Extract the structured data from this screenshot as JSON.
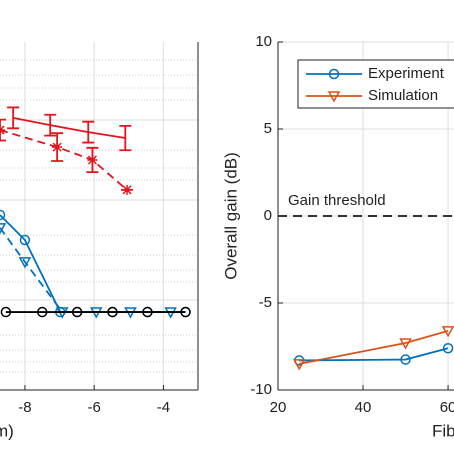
{
  "chart_data": [
    {
      "type": "line",
      "xlabel": "m)",
      "xlim": [
        -8.72,
        -3.0
      ],
      "ylim": [
        0,
        1
      ],
      "xticks": [
        -8,
        -6,
        -4
      ],
      "grid": true,
      "series": [
        {
          "name": "red-solid",
          "color": "#e3141c",
          "dash": false,
          "marker": "none",
          "x": [
            -8.34,
            -7.27,
            -6.17,
            -5.1
          ],
          "values": [
            0.782,
            0.761,
            0.741,
            0.724
          ],
          "errors": [
            0.03,
            0.03,
            0.03,
            0.035
          ]
        },
        {
          "name": "red-dashed",
          "color": "#e3141c",
          "dash": true,
          "marker": "asterisk",
          "x": [
            -8.72,
            -7.07,
            -6.05,
            -5.05
          ],
          "values": [
            0.747,
            0.698,
            0.661,
            0.575
          ],
          "errors": [
            0.03,
            0.04,
            0.035,
            0.0
          ]
        },
        {
          "name": "blue-solid",
          "color": "#0072bd",
          "dash": false,
          "marker": "circle",
          "x": [
            -8.72,
            -8.0,
            -6.98,
            -6.49,
            -5.47,
            -4.46,
            -3.36
          ],
          "values": [
            0.503,
            0.431,
            0.224,
            0.224,
            0.224,
            0.224,
            0.224
          ]
        },
        {
          "name": "blue-dashed",
          "color": "#0072bd",
          "dash": true,
          "marker": "triangle",
          "x": [
            -8.72,
            -8.0,
            -6.92,
            -5.94,
            -4.95,
            -3.79
          ],
          "values": [
            0.466,
            0.368,
            0.224,
            0.224,
            0.224,
            0.224
          ]
        },
        {
          "name": "black",
          "color": "#000000",
          "dash": false,
          "marker": "circle",
          "x": [
            -8.55,
            -7.5,
            -6.49,
            -5.47,
            -4.46,
            -3.36
          ],
          "values": [
            0.224,
            0.224,
            0.224,
            0.224,
            0.224,
            0.224
          ]
        }
      ]
    },
    {
      "type": "line",
      "xlabel": "Fib",
      "ylabel": "Overall gain (dB)",
      "xlim": [
        20,
        61.4
      ],
      "ylim": [
        -10,
        10
      ],
      "xticks": [
        20,
        40,
        60
      ],
      "yticks": [
        -10,
        -5,
        0,
        5,
        10
      ],
      "grid": true,
      "threshold": 0,
      "threshold_label": "Gain threshold",
      "legend": "upper-right",
      "series": [
        {
          "name": "Experiment",
          "color": "#0072bd",
          "dash": false,
          "marker": "circle",
          "x": [
            25,
            50,
            60
          ],
          "values": [
            -8.3,
            -8.25,
            -7.6
          ]
        },
        {
          "name": "Simulation",
          "color": "#d95319",
          "dash": false,
          "marker": "triangle",
          "x": [
            25,
            50,
            60
          ],
          "values": [
            -8.5,
            -7.3,
            -6.6
          ]
        }
      ]
    }
  ]
}
